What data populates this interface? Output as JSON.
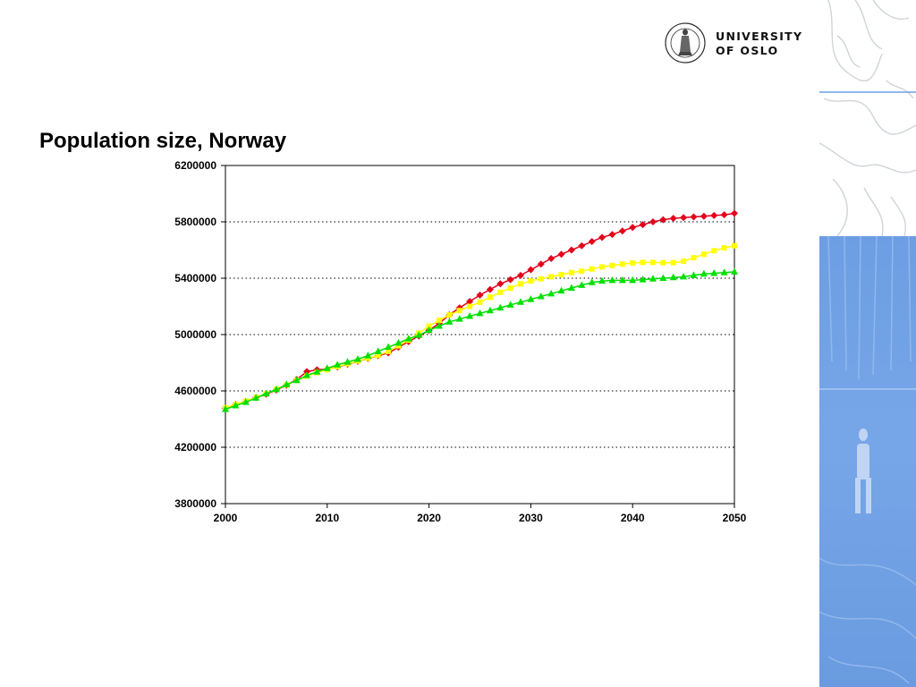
{
  "slide": {
    "title": "Population size, Norway"
  },
  "logo": {
    "line1": "UNIVERSITY",
    "line2": "OF OSLO",
    "seal_icon": "university-seal-icon"
  },
  "colors": {
    "red_series": "#e3001b",
    "yellow_series": "#ffff00",
    "green_series": "#00e000",
    "sidebar_blue": "#6d9ee3"
  },
  "chart_data": {
    "type": "line",
    "title": "",
    "xlabel": "",
    "ylabel": "",
    "xlim": [
      2000,
      2050
    ],
    "ylim": [
      3800000,
      6200000
    ],
    "x_ticks": [
      2000,
      2010,
      2020,
      2030,
      2040,
      2050
    ],
    "y_ticks": [
      3800000,
      4200000,
      4600000,
      5000000,
      5400000,
      5800000,
      6200000
    ],
    "x_tick_labels": [
      "2000",
      "2010",
      "2020",
      "2030",
      "2040",
      "2050"
    ],
    "y_tick_labels": [
      "3800000",
      "4200000",
      "4600000",
      "5000000",
      "5400000",
      "5800000",
      "6200000"
    ],
    "grid": "horizontal dotted",
    "legend": "none",
    "x": [
      2000,
      2001,
      2002,
      2003,
      2004,
      2005,
      2006,
      2007,
      2008,
      2009,
      2010,
      2011,
      2012,
      2013,
      2014,
      2015,
      2016,
      2017,
      2018,
      2019,
      2020,
      2021,
      2022,
      2023,
      2024,
      2025,
      2026,
      2027,
      2028,
      2029,
      2030,
      2031,
      2032,
      2033,
      2034,
      2035,
      2036,
      2037,
      2038,
      2039,
      2040,
      2041,
      2042,
      2043,
      2044,
      2045,
      2046,
      2047,
      2048,
      2049,
      2050
    ],
    "series": [
      {
        "color": "#e3001b",
        "marker": "diamond",
        "values": [
          4478000,
          4503000,
          4525000,
          4552000,
          4577000,
          4606000,
          4640000,
          4681000,
          4737000,
          4750000,
          4755000,
          4770000,
          4790000,
          4810000,
          4830000,
          4850000,
          4870000,
          4910000,
          4950000,
          4990000,
          5030000,
          5080000,
          5140000,
          5190000,
          5235000,
          5280000,
          5320000,
          5360000,
          5390000,
          5420000,
          5460000,
          5500000,
          5540000,
          5570000,
          5600000,
          5630000,
          5660000,
          5690000,
          5710000,
          5735000,
          5760000,
          5780000,
          5800000,
          5815000,
          5825000,
          5830000,
          5835000,
          5840000,
          5845000,
          5850000,
          5860000
        ]
      },
      {
        "color": "#ffff00",
        "marker": "square",
        "values": [
          4480000,
          4505000,
          4528000,
          4554000,
          4580000,
          4610000,
          4642000,
          4675000,
          4705000,
          4730000,
          4750000,
          4772000,
          4792000,
          4812000,
          4832000,
          4852000,
          4880000,
          4920000,
          4960000,
          5010000,
          5060000,
          5100000,
          5140000,
          5170000,
          5200000,
          5230000,
          5265000,
          5300000,
          5330000,
          5360000,
          5380000,
          5395000,
          5410000,
          5425000,
          5440000,
          5450000,
          5465000,
          5480000,
          5490000,
          5500000,
          5508000,
          5512000,
          5512000,
          5510000,
          5510000,
          5520000,
          5545000,
          5570000,
          5595000,
          5615000,
          5630000
        ]
      },
      {
        "color": "#00e000",
        "marker": "triangle",
        "values": [
          4470000,
          4495000,
          4520000,
          4550000,
          4580000,
          4610000,
          4645000,
          4675000,
          4710000,
          4735000,
          4760000,
          4785000,
          4805000,
          4825000,
          4850000,
          4880000,
          4910000,
          4940000,
          4970000,
          4995000,
          5030000,
          5060000,
          5090000,
          5110000,
          5130000,
          5150000,
          5170000,
          5190000,
          5210000,
          5230000,
          5250000,
          5270000,
          5290000,
          5310000,
          5330000,
          5350000,
          5370000,
          5380000,
          5385000,
          5385000,
          5385000,
          5390000,
          5395000,
          5400000,
          5405000,
          5410000,
          5420000,
          5430000,
          5435000,
          5440000,
          5445000
        ]
      }
    ]
  }
}
